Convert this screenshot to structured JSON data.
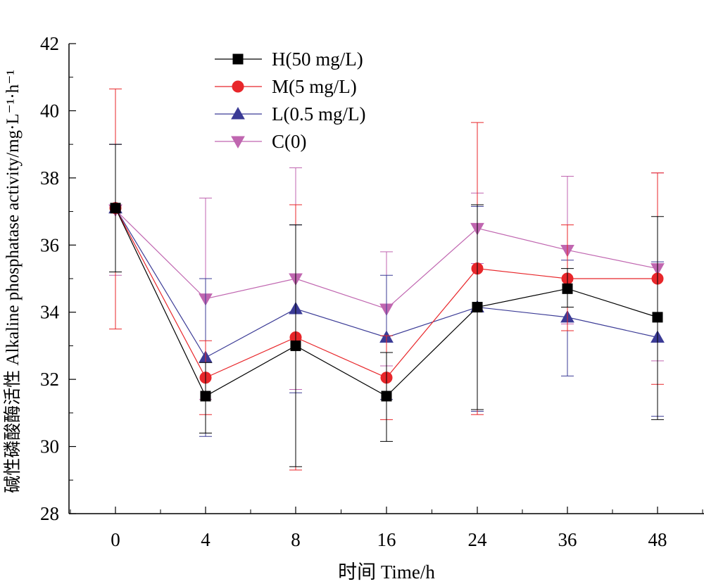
{
  "chart_data": {
    "type": "line",
    "xlabel": "时间 Time/h",
    "ylabel": "碱性磷酸酶活性 Alkaline phosphatase activity/mg·L⁻¹·h⁻¹",
    "categories": [
      "0",
      "4",
      "8",
      "16",
      "24",
      "36",
      "48"
    ],
    "ylim": [
      28,
      42
    ],
    "yticks": [
      "28",
      "30",
      "32",
      "34",
      "36",
      "38",
      "40",
      "42"
    ],
    "grid": false,
    "legend_position": "top-left",
    "series": [
      {
        "name": "H(50 mg/L)",
        "color": "#000000",
        "marker": "square",
        "values": [
          37.1,
          31.5,
          33.0,
          31.5,
          34.15,
          34.7,
          33.85
        ],
        "err_high": [
          39.0,
          32.5,
          36.6,
          32.8,
          37.2,
          35.3,
          36.85
        ],
        "err_low": [
          35.2,
          30.4,
          29.4,
          30.15,
          31.1,
          34.15,
          30.8
        ]
      },
      {
        "name": "M(5 mg/L)",
        "color": "#e8262a",
        "marker": "circle",
        "values": [
          37.1,
          32.05,
          33.25,
          32.05,
          35.3,
          35.0,
          35.0
        ],
        "err_high": [
          40.65,
          33.15,
          37.2,
          33.3,
          39.65,
          36.6,
          38.15
        ],
        "err_low": [
          33.5,
          30.95,
          29.3,
          30.8,
          30.95,
          33.45,
          31.85
        ]
      },
      {
        "name": "L(0.5 mg/L)",
        "color": "#3b3b96",
        "marker": "triangle-up",
        "values": [
          37.1,
          32.65,
          34.1,
          33.25,
          34.15,
          33.85,
          33.25
        ],
        "err_high": [
          39.0,
          35.0,
          36.6,
          35.1,
          37.15,
          35.55,
          35.5
        ],
        "err_low": [
          35.2,
          30.3,
          31.6,
          31.4,
          31.05,
          32.1,
          30.9
        ]
      },
      {
        "name": "C(0)",
        "color": "#c066b0",
        "marker": "triangle-down",
        "values": [
          37.05,
          34.4,
          35.0,
          34.1,
          36.5,
          35.85,
          35.3
        ],
        "err_high": [
          39.0,
          37.4,
          38.3,
          35.8,
          37.55,
          38.05,
          38.15
        ],
        "err_low": [
          35.1,
          31.4,
          31.7,
          32.4,
          35.45,
          33.65,
          32.55
        ]
      }
    ]
  }
}
